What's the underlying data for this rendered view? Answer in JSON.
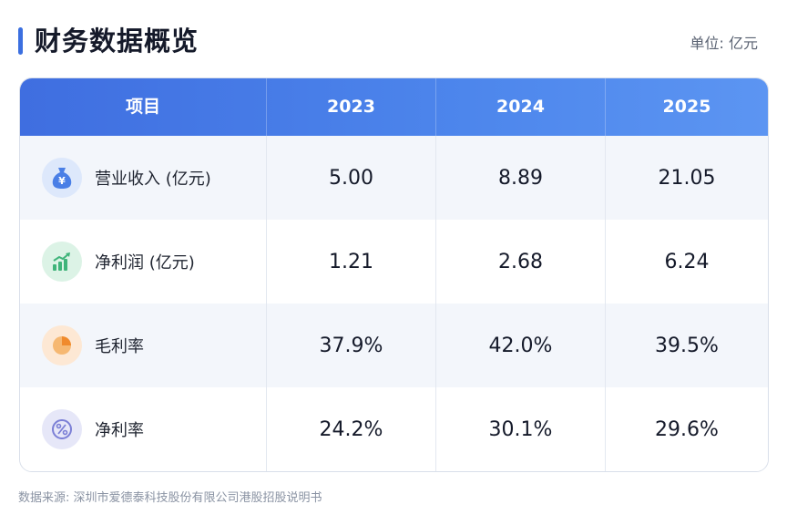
{
  "header": {
    "title": "财务数据概览",
    "unit": "单位: 亿元",
    "accent_color": "#3b6fe0"
  },
  "table": {
    "columns": [
      "项目",
      "2023",
      "2024",
      "2025"
    ],
    "rows": [
      {
        "label": "营业收入 (亿元)",
        "icon": "money-bag-icon",
        "icon_color": "#4a7fe6",
        "icon_bg": "#dde8fb",
        "values": [
          "5.00",
          "8.89",
          "21.05"
        ]
      },
      {
        "label": "净利润 (亿元)",
        "icon": "rising-bar-chart-icon",
        "icon_color": "#3fb47a",
        "icon_bg": "#dcf3e6",
        "values": [
          "1.21",
          "2.68",
          "6.24"
        ]
      },
      {
        "label": "毛利率",
        "icon": "pie-chart-icon",
        "icon_color": "#f3a04a",
        "icon_bg": "#fde8d4",
        "values": [
          "37.9%",
          "42.0%",
          "39.5%"
        ]
      },
      {
        "label": "净利率",
        "icon": "percent-icon",
        "icon_color": "#7b7fd6",
        "icon_bg": "#e6e7f8",
        "values": [
          "24.2%",
          "30.1%",
          "29.6%"
        ]
      }
    ]
  },
  "footer": {
    "source": "数据来源: 深圳市爱德泰科技股份有限公司港股招股说明书"
  }
}
